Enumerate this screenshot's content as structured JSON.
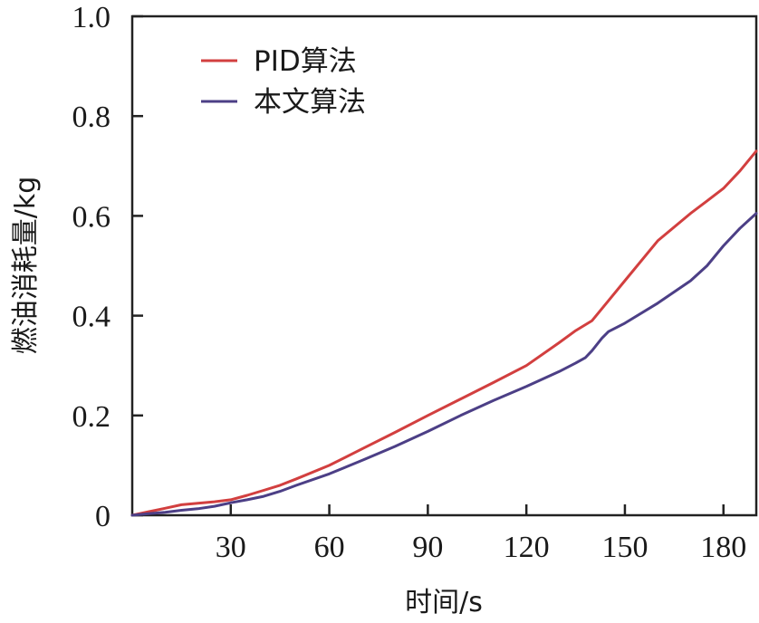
{
  "chart_data": {
    "type": "line",
    "xlabel": "时间/s",
    "ylabel": "燃油消耗量/kg",
    "xlim": [
      0,
      190
    ],
    "ylim": [
      0,
      1.0
    ],
    "x_ticks": [
      30,
      60,
      90,
      120,
      150,
      180
    ],
    "x_tick_labels": [
      "30",
      "60",
      "90",
      "120",
      "150",
      "180"
    ],
    "y_ticks": [
      0,
      0.2,
      0.4,
      0.6,
      0.8,
      1.0
    ],
    "y_tick_labels": [
      "0",
      "0.2",
      "0.4",
      "0.6",
      "0.8",
      "1.0"
    ],
    "grid": false,
    "legend_position": "top-left",
    "series": [
      {
        "name": "PID算法",
        "color": "#d23f3f",
        "x": [
          0,
          5,
          10,
          15,
          20,
          25,
          30,
          35,
          40,
          45,
          50,
          60,
          70,
          80,
          90,
          100,
          110,
          120,
          130,
          135,
          140,
          145,
          150,
          160,
          170,
          175,
          180,
          185,
          190
        ],
        "y": [
          0,
          0.007,
          0.014,
          0.021,
          0.024,
          0.027,
          0.031,
          0.04,
          0.05,
          0.06,
          0.073,
          0.1,
          0.133,
          0.166,
          0.2,
          0.233,
          0.266,
          0.3,
          0.346,
          0.37,
          0.39,
          0.43,
          0.47,
          0.55,
          0.605,
          0.63,
          0.655,
          0.69,
          0.73
        ]
      },
      {
        "name": "本文算法",
        "color": "#4c3f86",
        "x": [
          0,
          5,
          10,
          15,
          20,
          25,
          30,
          35,
          40,
          45,
          50,
          60,
          70,
          80,
          90,
          100,
          110,
          120,
          130,
          135,
          138,
          140,
          143,
          145,
          150,
          160,
          170,
          175,
          180,
          185,
          190
        ],
        "y": [
          0,
          0.003,
          0.006,
          0.01,
          0.013,
          0.018,
          0.025,
          0.031,
          0.038,
          0.048,
          0.06,
          0.083,
          0.11,
          0.138,
          0.168,
          0.2,
          0.23,
          0.258,
          0.288,
          0.305,
          0.316,
          0.33,
          0.355,
          0.368,
          0.385,
          0.425,
          0.47,
          0.5,
          0.54,
          0.575,
          0.605
        ]
      }
    ]
  }
}
